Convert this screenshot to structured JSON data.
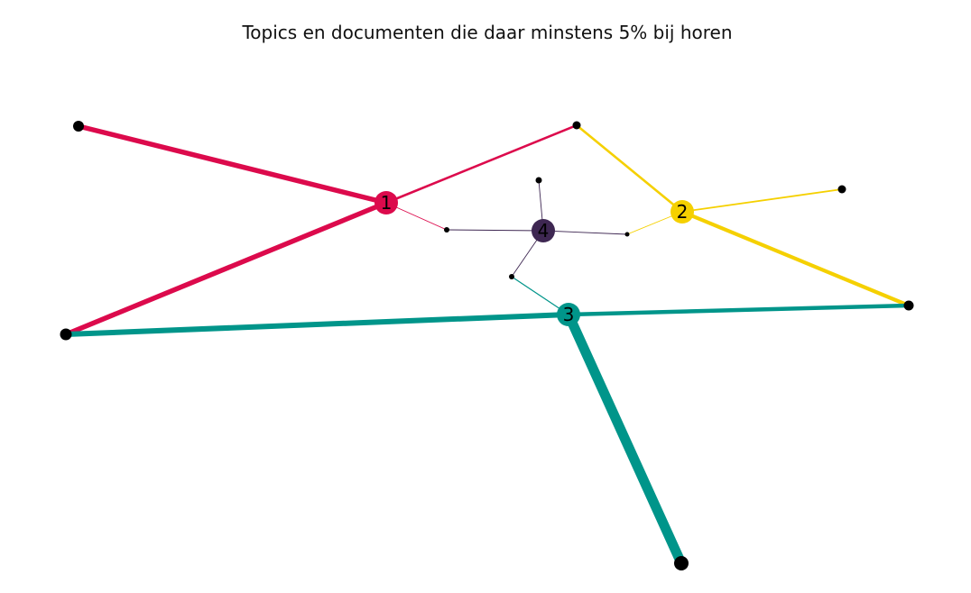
{
  "title": "Topics en documenten die daar minstens 5% bij horen",
  "colors": {
    "topic_1": "#dc0a4c",
    "topic_2": "#f5d000",
    "topic_3": "#00958a",
    "topic_4": "#3e2752",
    "document": "#000000"
  },
  "topics": [
    {
      "id": "1",
      "label": "1",
      "color": "#dc0a4c"
    },
    {
      "id": "2",
      "label": "2",
      "color": "#f5d000"
    },
    {
      "id": "3",
      "label": "3",
      "color": "#00958a"
    },
    {
      "id": "4",
      "label": "4",
      "color": "#3e2752"
    }
  ],
  "documents": [
    "d1",
    "d2",
    "d3",
    "d4",
    "d5",
    "d6",
    "d7",
    "d8",
    "d9",
    "d10"
  ],
  "edges": [
    {
      "topic": "1",
      "doc": "d1",
      "level": "high"
    },
    {
      "topic": "1",
      "doc": "d2",
      "level": "high"
    },
    {
      "topic": "1",
      "doc": "d3",
      "level": "medium"
    },
    {
      "topic": "1",
      "doc": "d6",
      "level": "low"
    },
    {
      "topic": "2",
      "doc": "d3",
      "level": "medium"
    },
    {
      "topic": "2",
      "doc": "d4",
      "level": "medium"
    },
    {
      "topic": "2",
      "doc": "d5",
      "level": "high"
    },
    {
      "topic": "2",
      "doc": "d8",
      "level": "low"
    },
    {
      "topic": "3",
      "doc": "d2",
      "level": "high"
    },
    {
      "topic": "3",
      "doc": "d5",
      "level": "high"
    },
    {
      "topic": "3",
      "doc": "d9",
      "level": "low"
    },
    {
      "topic": "3",
      "doc": "d10",
      "level": "very-high"
    },
    {
      "topic": "4",
      "doc": "d6",
      "level": "low"
    },
    {
      "topic": "4",
      "doc": "d7",
      "level": "low"
    },
    {
      "topic": "4",
      "doc": "d8",
      "level": "low"
    },
    {
      "topic": "4",
      "doc": "d9",
      "level": "low"
    }
  ]
}
